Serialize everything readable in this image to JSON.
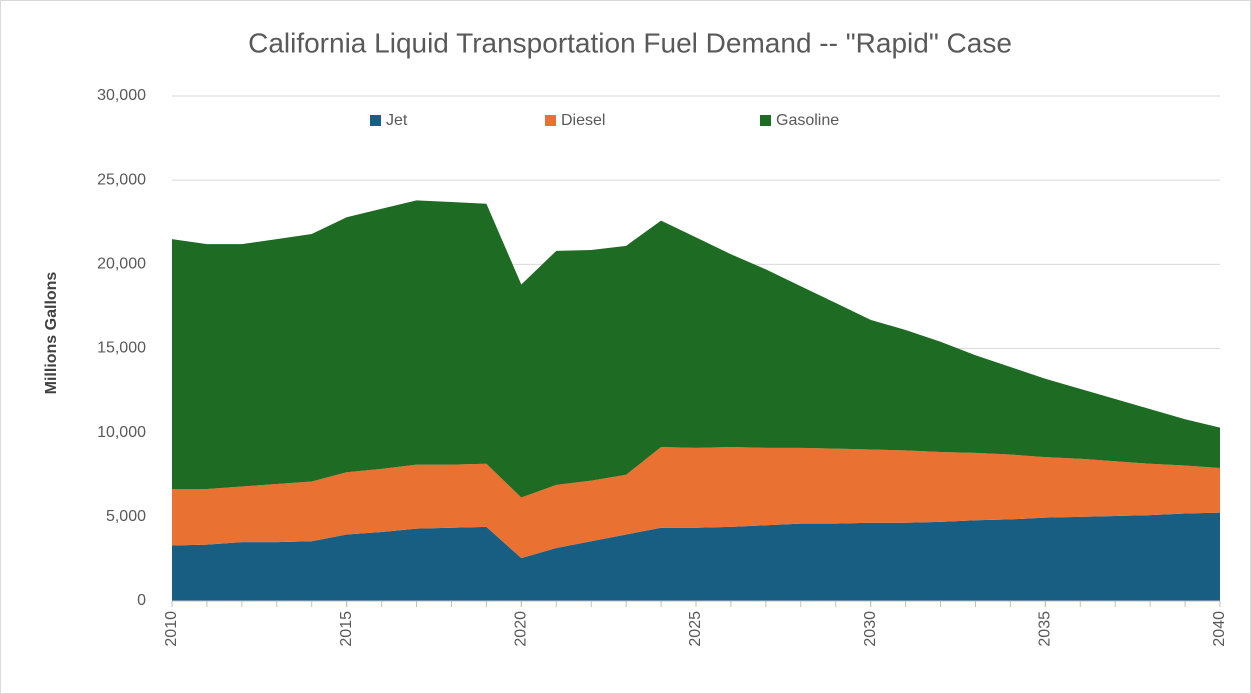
{
  "chart_data": {
    "type": "stacked_area",
    "title": "California Liquid Transportation Fuel Demand -- \"Rapid\" Case",
    "y_label": "Millions Gallons",
    "x": [
      2010,
      2011,
      2012,
      2013,
      2014,
      2015,
      2016,
      2017,
      2018,
      2019,
      2020,
      2021,
      2022,
      2023,
      2024,
      2025,
      2026,
      2027,
      2028,
      2029,
      2030,
      2031,
      2032,
      2033,
      2034,
      2035,
      2036,
      2037,
      2038,
      2039,
      2040
    ],
    "series": [
      {
        "name": "Jet",
        "color": "#185e82",
        "values": [
          3300,
          3350,
          3500,
          3500,
          3550,
          3950,
          4100,
          4300,
          4350,
          4400,
          2550,
          3150,
          3550,
          3950,
          4350,
          4350,
          4400,
          4500,
          4600,
          4600,
          4650,
          4650,
          4700,
          4800,
          4850,
          4950,
          5000,
          5050,
          5100,
          5200,
          5250
        ]
      },
      {
        "name": "Diesel",
        "color": "#e97132",
        "values": [
          3350,
          3300,
          3300,
          3450,
          3550,
          3700,
          3750,
          3800,
          3750,
          3750,
          3600,
          3750,
          3600,
          3550,
          4800,
          4750,
          4750,
          4600,
          4500,
          4450,
          4350,
          4300,
          4150,
          4000,
          3850,
          3600,
          3450,
          3250,
          3050,
          2850,
          2650
        ]
      },
      {
        "name": "Gasoline",
        "color": "#1e6b23",
        "values": [
          14850,
          14550,
          14400,
          14550,
          14700,
          15150,
          15450,
          15700,
          15600,
          15450,
          12650,
          13900,
          13700,
          13600,
          13450,
          12500,
          11450,
          10600,
          9600,
          8650,
          7700,
          7150,
          6550,
          5800,
          5200,
          4650,
          4150,
          3700,
          3250,
          2750,
          2400
        ]
      }
    ],
    "xlim": [
      2010,
      2040
    ],
    "xticks": [
      2010,
      2015,
      2020,
      2025,
      2030,
      2035,
      2040
    ],
    "ylim": [
      0,
      30000
    ],
    "yticks": [
      0,
      {
        "value": 5000,
        "label": "5,000"
      },
      {
        "value": 10000,
        "label": "10,000"
      },
      {
        "value": 15000,
        "label": "15,000"
      },
      {
        "value": 20000,
        "label": "20,000"
      },
      {
        "value": 25000,
        "label": "25,000"
      },
      {
        "value": 30000,
        "label": "30,000"
      }
    ],
    "grid": true,
    "legend": "top"
  }
}
